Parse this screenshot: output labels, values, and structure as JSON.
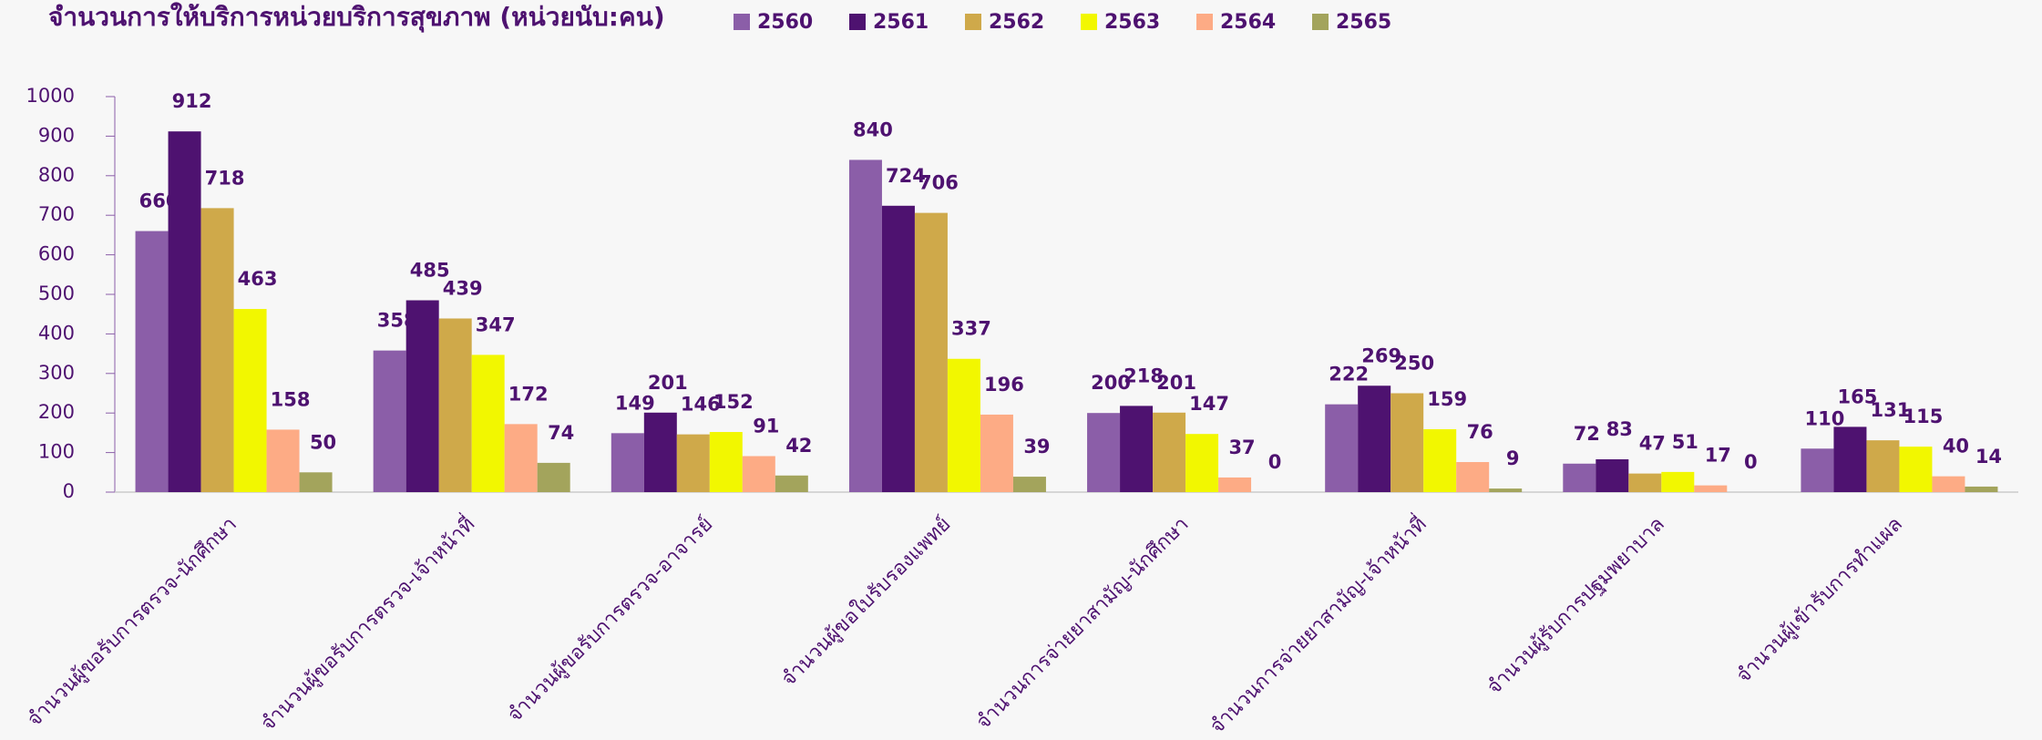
{
  "chart_data": {
    "type": "bar",
    "title": "จำนวนการให้บริการหน่วยบริการสุขภาพ (หน่วยนับ:คน)",
    "categories": [
      "จำนวนผู้ขอรับการตรวจ-นักศึกษา",
      "จำนวนผู้ขอรับการตรวจ-เจ้าหน้าที่",
      "จำนวนผู้ขอรับการตรวจ-อาจารย์",
      "จำนวนผู้ขอใบรับรองแพทย์",
      "จำนวนการจ่ายยาสามัญ-นักศึกษา",
      "จำนวนการจ่ายยาสามัญ-เจ้าหน้าที่",
      "จำนวนผู้รับการปฐมพยาบาล",
      "จำนวนผู้เข้ารับการทำแผล"
    ],
    "series": [
      {
        "name": "2560",
        "color": "#8b5ea8",
        "values": [
          660,
          358,
          149,
          840,
          200,
          222,
          72,
          110
        ]
      },
      {
        "name": "2561",
        "color": "#4e1270",
        "values": [
          912,
          485,
          201,
          724,
          218,
          269,
          83,
          165
        ]
      },
      {
        "name": "2562",
        "color": "#cfa94a",
        "values": [
          718,
          439,
          146,
          706,
          201,
          250,
          47,
          131
        ]
      },
      {
        "name": "2563",
        "color": "#f2f700",
        "values": [
          463,
          347,
          152,
          337,
          147,
          159,
          51,
          115
        ]
      },
      {
        "name": "2564",
        "color": "#fdab85",
        "values": [
          158,
          172,
          91,
          196,
          37,
          76,
          17,
          40
        ]
      },
      {
        "name": "2565",
        "color": "#a3a45c",
        "values": [
          50,
          74,
          42,
          39,
          0,
          9,
          0,
          14
        ]
      }
    ],
    "ylim": [
      0,
      1000
    ],
    "yticks": [
      0,
      100,
      200,
      300,
      400,
      500,
      600,
      700,
      800,
      900,
      1000
    ],
    "legend": "top",
    "grid": false
  }
}
